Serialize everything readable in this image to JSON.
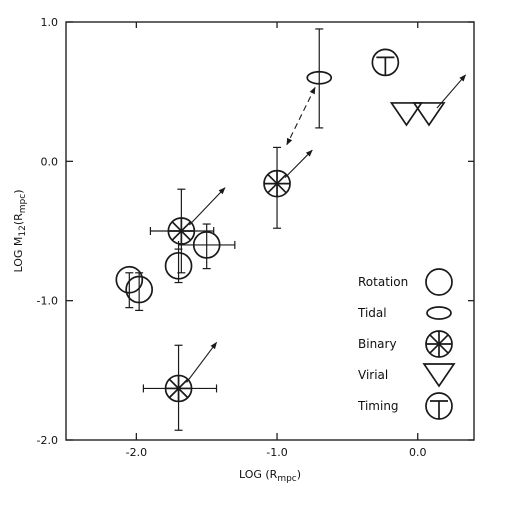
{
  "chart_data": {
    "type": "scatter",
    "xlabel_main": "LOG (R",
    "xlabel_sub": "mpc",
    "xlabel_close": ")",
    "ylabel_main": "LOG M",
    "ylabel_sub": "12",
    "ylabel_mid": "(R",
    "ylabel_sub2": "mpc",
    "ylabel_close": ")",
    "xlim": [
      -2.5,
      0.4
    ],
    "ylim": [
      -2.0,
      1.0
    ],
    "x_ticks": [
      -2.0,
      -1.0,
      0.0
    ],
    "x_tick_labels": [
      "-2.0",
      "-1.0",
      "0.0"
    ],
    "y_ticks": [
      1.0,
      0.0,
      -1.0,
      -2.0
    ],
    "y_tick_labels": [
      "1.0",
      "0.0",
      "-1.0",
      "-2.0"
    ],
    "legend": [
      {
        "label": "Rotation",
        "symbol": "rotation"
      },
      {
        "label": "Tidal",
        "symbol": "tidal"
      },
      {
        "label": "Binary",
        "symbol": "binary"
      },
      {
        "label": "Virial",
        "symbol": "virial"
      },
      {
        "label": "Timing",
        "symbol": "timing"
      }
    ],
    "points": [
      {
        "x": -2.05,
        "y": -0.85,
        "symbol": "rotation",
        "err_y": [
          -1.05,
          -0.8
        ]
      },
      {
        "x": -1.98,
        "y": -0.92,
        "symbol": "rotation",
        "err_y": [
          -1.07,
          -0.8
        ]
      },
      {
        "x": -1.7,
        "y": -0.75,
        "symbol": "rotation",
        "err_y": [
          -0.87,
          -0.63
        ]
      },
      {
        "x": -1.5,
        "y": -0.6,
        "symbol": "rotation",
        "err_x": [
          -1.7,
          -1.3
        ],
        "err_y": [
          -0.77,
          -0.45
        ]
      },
      {
        "x": -1.68,
        "y": -0.5,
        "symbol": "binary",
        "err_x": [
          -1.9,
          -1.45
        ],
        "err_y": [
          -0.8,
          -0.2
        ],
        "arrow_to": [
          -1.37,
          -0.19
        ]
      },
      {
        "x": -1.0,
        "y": -0.16,
        "symbol": "binary",
        "err_y": [
          -0.48,
          0.1
        ],
        "arrow_to": [
          -0.75,
          0.08
        ]
      },
      {
        "x": -1.7,
        "y": -1.63,
        "symbol": "binary",
        "err_x": [
          -1.95,
          -1.43
        ],
        "err_y": [
          -1.93,
          -1.32
        ],
        "arrow_to": [
          -1.43,
          -1.3
        ]
      },
      {
        "x": -0.7,
        "y": 0.6,
        "symbol": "tidal",
        "err_y": [
          0.24,
          0.95
        ]
      },
      {
        "x": -0.23,
        "y": 0.71,
        "symbol": "timing"
      },
      {
        "x": -0.08,
        "y": 0.34,
        "symbol": "virial"
      },
      {
        "x": 0.08,
        "y": 0.34,
        "symbol": "virial",
        "arrow_to": [
          0.34,
          0.62
        ]
      }
    ],
    "dashed_arrow": {
      "from": [
        -0.73,
        0.53
      ],
      "to": [
        -0.93,
        0.12
      ]
    }
  }
}
